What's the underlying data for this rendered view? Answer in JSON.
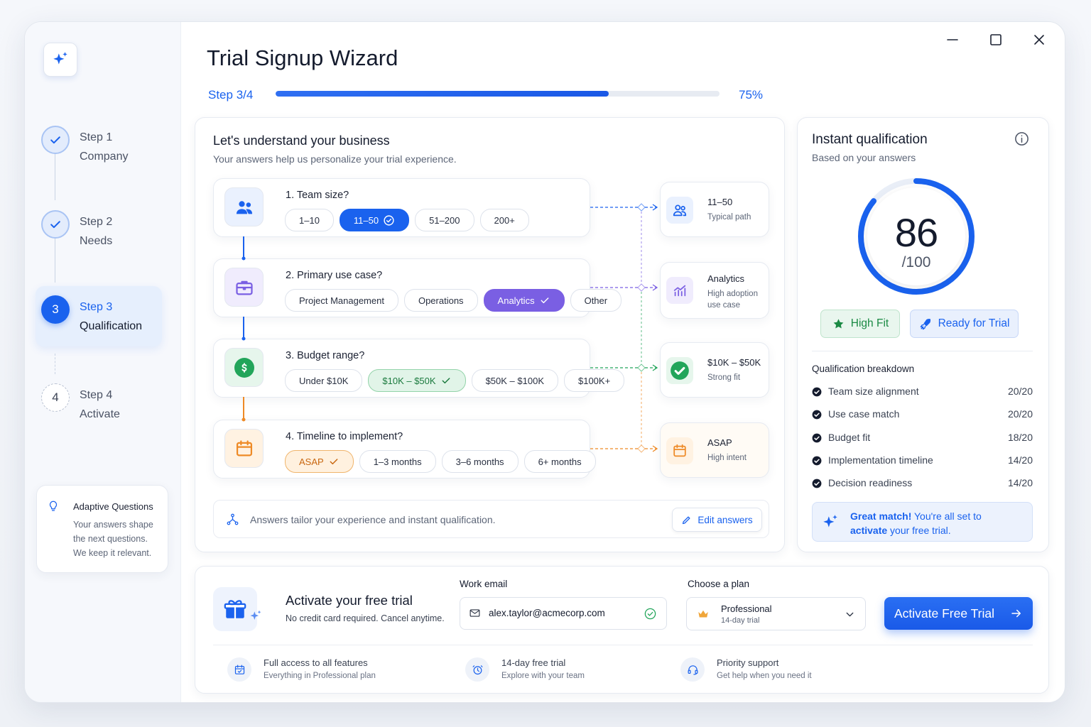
{
  "sidebar": {
    "steps": [
      {
        "label": "Step 1",
        "name": "Company",
        "status": "done"
      },
      {
        "label": "Step 2",
        "name": "Needs",
        "status": "done"
      },
      {
        "number": 3,
        "label": "Step 3",
        "name": "Qualification",
        "status": "current"
      },
      {
        "number": 4,
        "label": "Step 4",
        "name": "Activate",
        "status": "upcoming"
      }
    ],
    "tip": {
      "title": "Adaptive Questions",
      "lines": [
        "Your answers shape",
        "the next questions.",
        "We keep it relevant."
      ]
    }
  },
  "header": {
    "title": "Trial Signup Wizard",
    "step": "Step 3/4",
    "progress": {
      "value": 75,
      "label": "75%"
    }
  },
  "questionnaire": {
    "title": "Let's understand your business",
    "subtitle": "Your answers help us personalize your trial experience.",
    "questions": [
      {
        "title": "1. Team size?",
        "options": [
          "1–10",
          "11–50",
          "51–200",
          "200+"
        ],
        "selected": 1,
        "result": {
          "title": "11–50",
          "subtitle": "Typical path"
        }
      },
      {
        "title": "2. Primary use case?",
        "options": [
          "Project Management",
          "Operations",
          "Analytics",
          "Other"
        ],
        "selected": 2,
        "result": {
          "title": "Analytics",
          "subtitle": "High adoption use case"
        }
      },
      {
        "title": "3. Budget range?",
        "options": [
          "Under $10K",
          "$10K – $50K",
          "$50K – $100K",
          "$100K+"
        ],
        "selected": 1,
        "result": {
          "title": "$10K – $50K",
          "subtitle": "Strong fit"
        }
      },
      {
        "title": "4. Timeline to implement?",
        "options": [
          "ASAP",
          "1–3 months",
          "3–6 months",
          "6+ months"
        ],
        "selected": 0,
        "result": {
          "title": "ASAP",
          "subtitle": "High intent"
        }
      }
    ],
    "footer": {
      "text": "Answers tailor your experience and instant qualification.",
      "action": "Edit answers"
    }
  },
  "qualification": {
    "title": "Instant qualification",
    "subtitle": "Based on your answers",
    "score": {
      "value": 86,
      "max": {
        "value": 100,
        "label": "/100"
      }
    },
    "badges": [
      "High Fit",
      "Ready for Trial"
    ],
    "breakdown_title": "Qualification breakdown",
    "breakdown": [
      {
        "name": "Team size alignment",
        "score": "20/20"
      },
      {
        "name": "Use case match",
        "score": "20/20"
      },
      {
        "name": "Budget fit",
        "score": "18/20"
      },
      {
        "name": "Implementation timeline",
        "score": "14/20"
      },
      {
        "name": "Decision readiness",
        "score": "14/20"
      }
    ],
    "message": [
      "Great match!",
      "You're all set to",
      "activate",
      "your free trial."
    ]
  },
  "activation": {
    "title": "Activate your free trial",
    "subtitle": "No credit card required. Cancel anytime.",
    "email": {
      "label": "Work email",
      "value": "alex.taylor@acmecorp.com"
    },
    "plan": {
      "label": "Choose a plan",
      "name": "Professional",
      "detail": "14-day trial"
    },
    "button": "Activate Free Trial",
    "features": [
      {
        "title": "Full access to all features",
        "subtitle": "Everything in Professional plan"
      },
      {
        "title": "14-day free trial",
        "subtitle": "Explore with your team"
      },
      {
        "title": "Priority support",
        "subtitle": "Get help when you need it"
      }
    ]
  }
}
